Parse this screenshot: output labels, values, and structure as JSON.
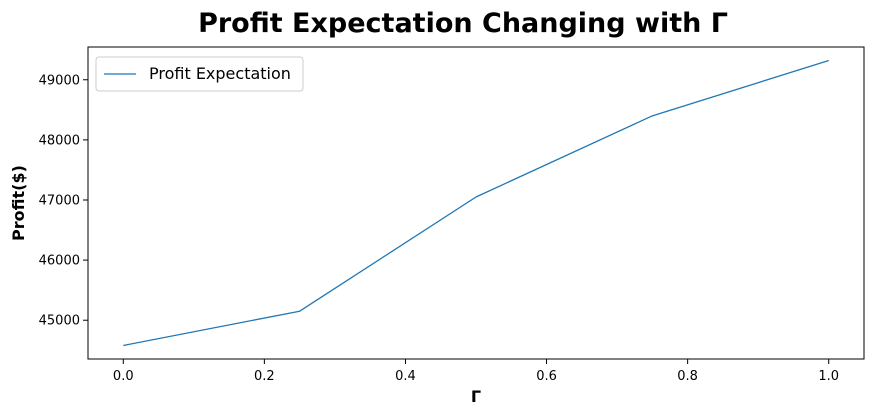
{
  "chart_data": {
    "type": "line",
    "title": "Profit Expectation Changing with Γ",
    "xlabel": "Γ",
    "ylabel": "Profit($)",
    "x": [
      0.0,
      0.25,
      0.5,
      0.75,
      1.0
    ],
    "series": [
      {
        "name": "Profit Expectation",
        "values": [
          44580,
          45150,
          47050,
          48400,
          49320
        ],
        "color": "#1f77b4"
      }
    ],
    "xlim": [
      -0.05,
      1.05
    ],
    "ylim": [
      44355,
      49545
    ],
    "xticks": [
      0.0,
      0.2,
      0.4,
      0.6,
      0.8,
      1.0
    ],
    "xtick_labels": [
      "0.0",
      "0.2",
      "0.4",
      "0.6",
      "0.8",
      "1.0"
    ],
    "yticks": [
      45000,
      46000,
      47000,
      48000,
      49000
    ],
    "ytick_labels": [
      "45000",
      "46000",
      "47000",
      "48000",
      "49000"
    ],
    "grid": false,
    "legend_position": "top-left"
  }
}
